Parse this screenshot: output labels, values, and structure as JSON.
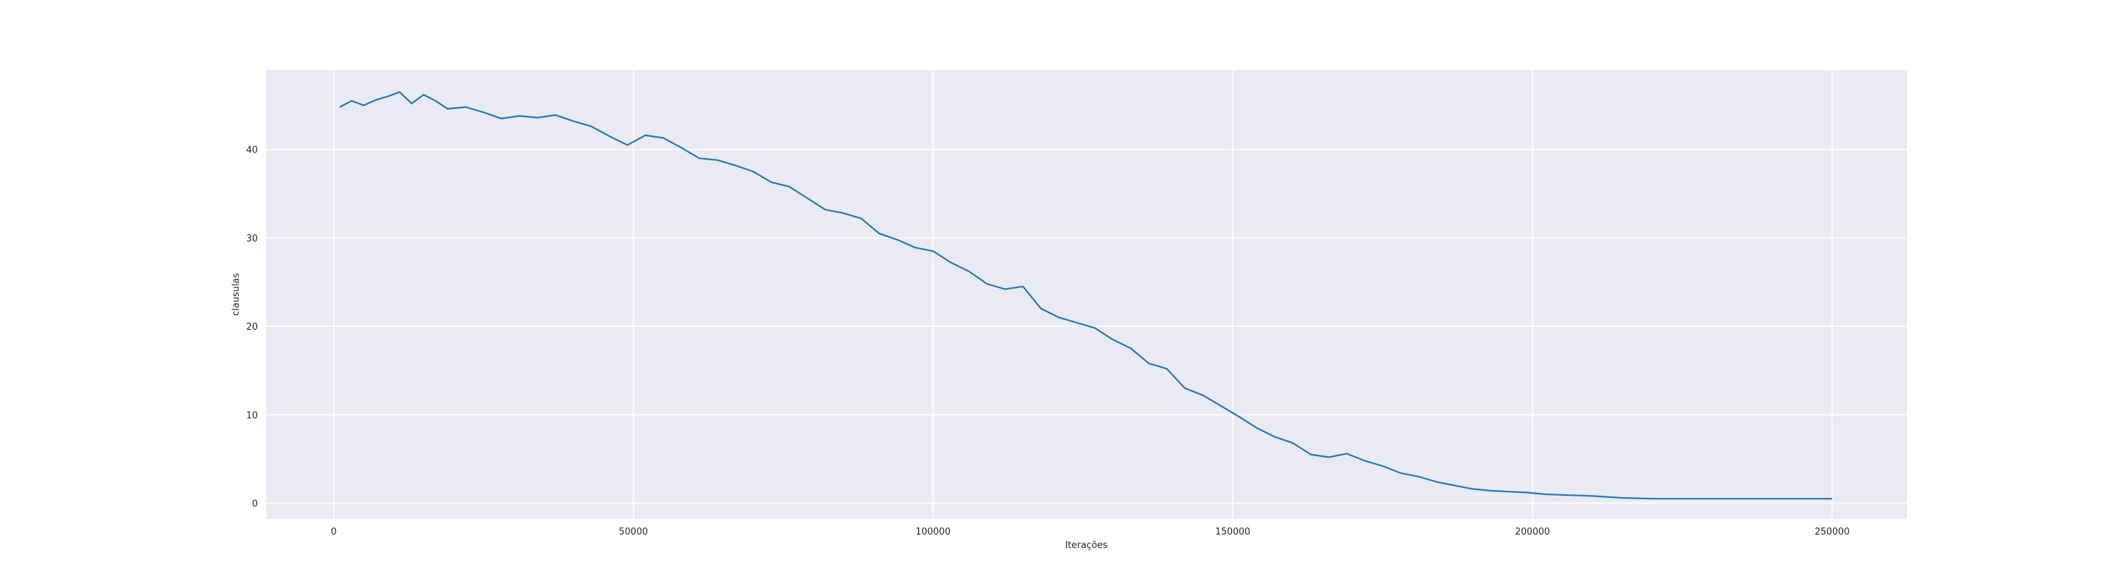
{
  "chart_data": {
    "type": "line",
    "title": "",
    "xlabel": "Iterações",
    "ylabel": "clausulas",
    "xlim": [
      -11250,
      262500
    ],
    "ylim": [
      -1.8,
      49
    ],
    "grid": true,
    "style": "seaborn-darkgrid",
    "colors": {
      "background": "#eaeaf2",
      "grid": "#ffffff",
      "line": "#1f77b4",
      "text": "#262626"
    },
    "xticks": [
      {
        "value": 0,
        "label": "0"
      },
      {
        "value": 50000,
        "label": "50000"
      },
      {
        "value": 100000,
        "label": "100000"
      },
      {
        "value": 150000,
        "label": "150000"
      },
      {
        "value": 200000,
        "label": "200000"
      },
      {
        "value": 250000,
        "label": "250000"
      }
    ],
    "yticks": [
      {
        "value": 0,
        "label": "0"
      },
      {
        "value": 10,
        "label": "10"
      },
      {
        "value": 20,
        "label": "20"
      },
      {
        "value": 30,
        "label": "30"
      },
      {
        "value": 40,
        "label": "40"
      }
    ],
    "series": [
      {
        "x": [
          1000,
          3000,
          5000,
          7000,
          9000,
          11000,
          13000,
          15000,
          17000,
          19000,
          22000,
          25000,
          28000,
          31000,
          34000,
          37000,
          40000,
          43000,
          46000,
          49000,
          52000,
          55000,
          58000,
          61000,
          64000,
          67000,
          70000,
          73000,
          76000,
          79000,
          82000,
          85000,
          88000,
          91000,
          94000,
          97000,
          100000,
          103000,
          106000,
          109000,
          112000,
          115000,
          118000,
          121000,
          124000,
          127000,
          130000,
          133000,
          136000,
          139000,
          142000,
          145000,
          148000,
          151000,
          154000,
          157000,
          160000,
          163000,
          166000,
          169000,
          172000,
          175000,
          178000,
          181000,
          184000,
          187000,
          190000,
          193000,
          196000,
          199000,
          202000,
          206000,
          210000,
          215000,
          220000,
          225000,
          230000,
          240000,
          250000
        ],
        "y": [
          44.8,
          45.5,
          45.0,
          45.6,
          46.0,
          46.5,
          45.2,
          46.2,
          45.5,
          44.6,
          44.8,
          44.2,
          43.5,
          43.8,
          43.6,
          43.9,
          43.2,
          42.6,
          41.5,
          40.5,
          41.6,
          41.3,
          40.2,
          39.0,
          38.8,
          38.2,
          37.5,
          36.3,
          35.8,
          34.5,
          33.2,
          32.8,
          32.2,
          30.5,
          29.8,
          28.9,
          28.5,
          27.2,
          26.2,
          24.8,
          24.2,
          24.5,
          22.0,
          21.0,
          20.4,
          19.8,
          18.5,
          17.5,
          15.8,
          15.2,
          13.0,
          12.2,
          11.0,
          9.8,
          8.5,
          7.5,
          6.8,
          5.5,
          5.2,
          5.6,
          4.8,
          4.2,
          3.4,
          3.0,
          2.4,
          2.0,
          1.6,
          1.4,
          1.3,
          1.2,
          1.0,
          0.9,
          0.8,
          0.6,
          0.5,
          0.5,
          0.5,
          0.5,
          0.5
        ]
      }
    ]
  }
}
